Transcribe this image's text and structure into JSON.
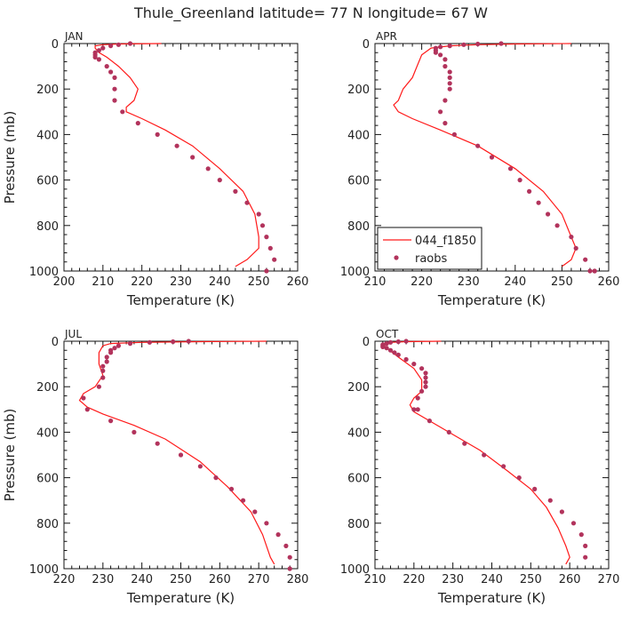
{
  "title": "Thule_Greenland  latitude= 77 N longitude= 67 W",
  "colors": {
    "model": "#ff1a1a",
    "obs": "#b2335c"
  },
  "legend": {
    "model_label": "044_f1850",
    "obs_label": "raobs",
    "panel": "APR"
  },
  "chart_data": [
    {
      "type": "line",
      "panel": "JAN",
      "xlabel": "Temperature (K)",
      "ylabel": "Pressure (mb)",
      "xlim": [
        200,
        260
      ],
      "ylim": [
        0,
        1000
      ],
      "y_inverted": true,
      "xticks": [
        200,
        210,
        220,
        230,
        240,
        250,
        260
      ],
      "yticks": [
        0,
        200,
        400,
        600,
        800,
        1000
      ],
      "series": [
        {
          "name": "044_f1850",
          "kind": "line",
          "t": [
            225,
            214,
            210,
            208,
            208,
            209,
            211,
            214,
            217,
            219,
            218,
            216,
            216,
            220,
            226,
            233,
            240,
            246,
            249,
            250,
            250,
            247,
            244
          ],
          "p": [
            0,
            2,
            5,
            10,
            20,
            40,
            60,
            100,
            150,
            200,
            250,
            280,
            300,
            330,
            380,
            450,
            550,
            650,
            750,
            850,
            900,
            950,
            980
          ]
        },
        {
          "name": "raobs",
          "kind": "points",
          "t": [
            217,
            214,
            212,
            210,
            209,
            208,
            208,
            208,
            209,
            211,
            212,
            213,
            213,
            213,
            215,
            219,
            224,
            229,
            233,
            237,
            240,
            244,
            247,
            250,
            251,
            252,
            253,
            254,
            252
          ],
          "p": [
            0,
            5,
            10,
            20,
            30,
            40,
            50,
            60,
            70,
            100,
            125,
            150,
            200,
            250,
            300,
            350,
            400,
            450,
            500,
            550,
            600,
            650,
            700,
            750,
            800,
            850,
            900,
            950,
            1000
          ]
        }
      ]
    },
    {
      "type": "line",
      "panel": "APR",
      "xlabel": "Temperature (K)",
      "ylabel": "",
      "xlim": [
        210,
        260
      ],
      "ylim": [
        0,
        1000
      ],
      "y_inverted": true,
      "xticks": [
        210,
        220,
        230,
        240,
        250,
        260
      ],
      "yticks": [
        0,
        200,
        400,
        600,
        800,
        1000
      ],
      "series": [
        {
          "name": "044_f1850",
          "kind": "line",
          "t": [
            252,
            240,
            232,
            226,
            222,
            220,
            219,
            218,
            216,
            215,
            214,
            215,
            218,
            224,
            232,
            240,
            246,
            250,
            252,
            253,
            252,
            250
          ],
          "p": [
            0,
            2,
            5,
            10,
            20,
            50,
            100,
            150,
            200,
            250,
            270,
            300,
            330,
            380,
            450,
            550,
            650,
            750,
            850,
            900,
            950,
            980
          ]
        },
        {
          "name": "raobs",
          "kind": "points",
          "t": [
            237,
            232,
            229,
            226,
            224,
            223,
            223,
            223,
            224,
            225,
            225,
            226,
            226,
            226,
            226,
            225,
            224,
            225,
            227,
            232,
            235,
            239,
            241,
            243,
            245,
            247,
            249,
            252,
            253,
            255,
            256,
            257,
            257
          ],
          "p": [
            0,
            2,
            5,
            10,
            15,
            20,
            30,
            40,
            50,
            70,
            100,
            125,
            150,
            175,
            200,
            250,
            300,
            350,
            400,
            450,
            500,
            550,
            600,
            650,
            700,
            750,
            800,
            850,
            900,
            950,
            1000,
            1000,
            1000
          ]
        }
      ]
    },
    {
      "type": "line",
      "panel": "JUL",
      "xlabel": "Temperature (K)",
      "ylabel": "Pressure (mb)",
      "xlim": [
        220,
        280
      ],
      "ylim": [
        0,
        1000
      ],
      "y_inverted": true,
      "xticks": [
        220,
        230,
        240,
        250,
        260,
        270,
        280
      ],
      "yticks": [
        0,
        200,
        400,
        600,
        800,
        1000
      ],
      "series": [
        {
          "name": "044_f1850",
          "kind": "line",
          "t": [
            272,
            255,
            240,
            232,
            230,
            229,
            229,
            230,
            228,
            225,
            224,
            226,
            230,
            238,
            246,
            255,
            262,
            268,
            271,
            272,
            273,
            274
          ],
          "p": [
            0,
            2,
            5,
            10,
            20,
            50,
            100,
            150,
            200,
            230,
            260,
            290,
            320,
            370,
            430,
            530,
            640,
            750,
            850,
            900,
            950,
            980
          ]
        },
        {
          "name": "raobs",
          "kind": "points",
          "t": [
            252,
            248,
            242,
            237,
            234,
            233,
            232,
            232,
            231,
            231,
            230,
            230,
            230,
            229,
            225,
            226,
            232,
            238,
            244,
            250,
            255,
            259,
            263,
            266,
            269,
            272,
            275,
            277,
            278,
            278
          ],
          "p": [
            0,
            2,
            5,
            10,
            20,
            30,
            40,
            50,
            70,
            90,
            110,
            130,
            160,
            200,
            250,
            300,
            350,
            400,
            450,
            500,
            550,
            600,
            650,
            700,
            750,
            800,
            850,
            900,
            950,
            1000
          ]
        }
      ]
    },
    {
      "type": "line",
      "panel": "OCT",
      "xlabel": "Temperature (K)",
      "ylabel": "",
      "xlim": [
        210,
        270
      ],
      "ylim": [
        0,
        1000
      ],
      "y_inverted": true,
      "xticks": [
        210,
        220,
        230,
        240,
        250,
        260,
        270
      ],
      "yticks": [
        0,
        200,
        400,
        600,
        800,
        1000
      ],
      "series": [
        {
          "name": "044_f1850",
          "kind": "line",
          "t": [
            227,
            218,
            214,
            212,
            213,
            216,
            220,
            222,
            222,
            220,
            219,
            220,
            224,
            230,
            237,
            244,
            250,
            254,
            257,
            259,
            260,
            259
          ],
          "p": [
            0,
            2,
            5,
            10,
            30,
            70,
            120,
            170,
            220,
            250,
            280,
            310,
            350,
            410,
            480,
            570,
            650,
            730,
            820,
            900,
            950,
            980
          ]
        },
        {
          "name": "raobs",
          "kind": "points",
          "t": [
            218,
            216,
            214,
            213,
            212,
            212,
            212,
            213,
            214,
            215,
            216,
            218,
            220,
            222,
            223,
            223,
            223,
            223,
            222,
            221,
            220,
            221,
            224,
            229,
            233,
            238,
            243,
            247,
            251,
            255,
            258,
            261,
            263,
            264,
            264
          ],
          "p": [
            0,
            2,
            5,
            10,
            15,
            20,
            25,
            30,
            40,
            50,
            60,
            80,
            100,
            120,
            140,
            160,
            180,
            200,
            220,
            250,
            300,
            300,
            350,
            400,
            450,
            500,
            550,
            600,
            650,
            700,
            750,
            800,
            850,
            900,
            950
          ]
        }
      ]
    }
  ]
}
